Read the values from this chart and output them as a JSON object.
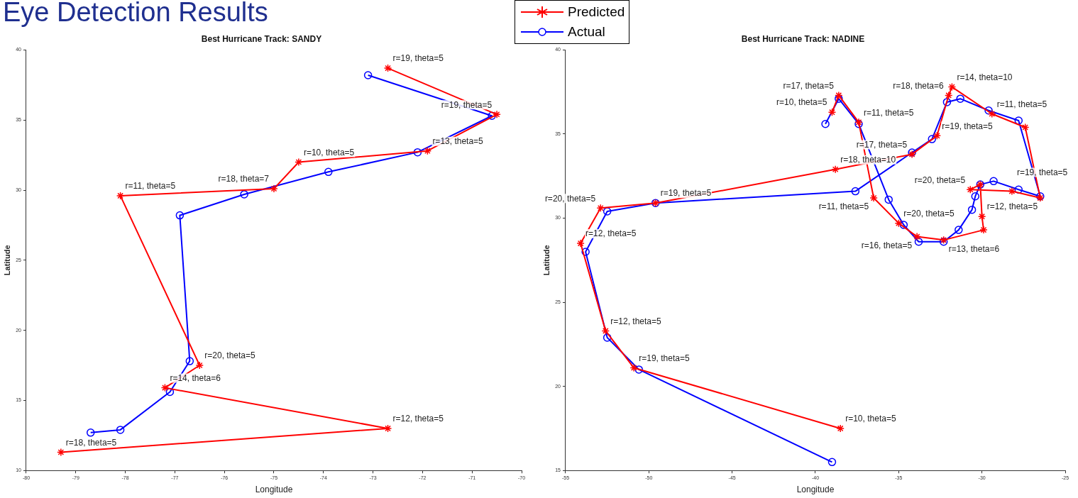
{
  "chart_data": [
    {
      "type": "line",
      "title": "Best Hurricane Track: SANDY",
      "xlabel": "Longitude",
      "ylabel": "Latitude",
      "annotations": [
        "Eye Detection Results"
      ],
      "xlim": [
        -80,
        -70
      ],
      "xticks": [
        -80,
        -79,
        -78,
        -77,
        -76,
        -75,
        -74,
        -73,
        -72,
        -71,
        -70
      ],
      "ylim": [
        10,
        40
      ],
      "yticks": [
        10,
        15,
        20,
        25,
        30,
        35,
        40
      ],
      "grid": false,
      "legend": "top right",
      "series": [
        {
          "name": "Predicted",
          "color": "#ff0000",
          "marker": "cross",
          "x": [
            -79.3,
            -72.7,
            -77.2,
            -76.5,
            -78.1,
            -75.0,
            -74.5,
            -71.9,
            -70.5,
            -72.7
          ],
          "values": [
            11.3,
            13.0,
            15.9,
            17.5,
            29.6,
            30.1,
            32.0,
            32.8,
            35.4,
            38.7
          ],
          "value_labels": [
            "r=18, theta=5",
            "r=12, theta=5",
            "r=14, theta=6",
            "r=20, theta=5",
            "r=11, theta=5",
            "r=18, theta=7",
            "r=10, theta=5",
            "r=13, theta=5",
            "r=19, theta=5",
            "r=19, theta=5"
          ]
        },
        {
          "name": "Actual",
          "color": "#0000ff",
          "marker": "circle",
          "x": [
            -78.7,
            -78.1,
            -77.1,
            -76.7,
            -76.9,
            -75.6,
            -73.9,
            -72.1,
            -70.6,
            -73.1
          ],
          "values": [
            12.7,
            12.9,
            15.6,
            17.8,
            28.2,
            29.7,
            31.3,
            32.7,
            35.3,
            38.2
          ]
        }
      ]
    },
    {
      "type": "line",
      "title": "Best Hurricane Track: NADINE",
      "xlabel": "Longitude",
      "ylabel": "Latitude",
      "xlim": [
        -55,
        -25
      ],
      "xticks": [
        -55,
        -50,
        -45,
        -40,
        -35,
        -30,
        -25
      ],
      "ylim": [
        15,
        40
      ],
      "yticks": [
        15,
        20,
        25,
        30,
        35,
        40
      ],
      "grid": false,
      "series": [
        {
          "color": "#ff0000",
          "marker": "cross",
          "x": [
            -38.5,
            -50.9,
            -52.6,
            -54.1,
            -52.9,
            -49.6,
            -38.8,
            -34.2,
            -32.7,
            -32.0,
            -31.8,
            -29.4,
            -27.4,
            -26.5,
            -28.2,
            -30.7,
            -30.1,
            -30.0,
            -29.9,
            -32.3,
            -33.9,
            -35.0,
            -36.5,
            -37.4,
            -38.6,
            -39.0
          ],
          "values": [
            17.5,
            21.1,
            23.3,
            28.5,
            30.6,
            30.9,
            32.9,
            33.8,
            34.9,
            37.3,
            37.8,
            36.2,
            35.4,
            31.2,
            31.6,
            31.7,
            32.0,
            30.1,
            29.3,
            28.7,
            28.9,
            29.7,
            31.2,
            35.7,
            37.3,
            36.3
          ],
          "value_labels": [
            "r=10, theta=5",
            "r=19, theta=5",
            "r=12, theta=5",
            "r=12, theta=5",
            "r=20, theta=5",
            "r=19, theta=5",
            "r=18, theta=10",
            "r=17, theta=5",
            "r=19, theta=5",
            "r=18, theta=6",
            "r=14, theta=10",
            "r=11, theta=5",
            null,
            null,
            "r=19, theta=5",
            "r=20, theta=5",
            null,
            "r=12, theta=5",
            null,
            "r=13, theta=6",
            "r=16, theta=5",
            "r=20, theta=5",
            "r=11, theta=5",
            "r=11, theta=5",
            "r=17, theta=5",
            "r=10, theta=5"
          ]
        },
        {
          "color": "#0000ff",
          "marker": "circle",
          "x": [
            -39.0,
            -50.6,
            -52.5,
            -53.8,
            -52.5,
            -49.6,
            -37.6,
            -34.2,
            -33.0,
            -32.1,
            -31.3,
            -29.6,
            -27.8,
            -26.5,
            -27.8,
            -29.3,
            -30.1,
            -30.4,
            -30.6,
            -31.4,
            -32.3,
            -33.8,
            -34.7,
            -35.6,
            -37.4,
            -38.6,
            -39.4
          ],
          "values": [
            15.5,
            21.0,
            22.9,
            28.0,
            30.4,
            30.9,
            31.6,
            33.9,
            34.7,
            36.9,
            37.1,
            36.4,
            35.8,
            31.3,
            31.7,
            32.2,
            32.0,
            31.3,
            30.5,
            29.3,
            28.6,
            28.6,
            29.6,
            31.1,
            35.6,
            37.1,
            35.6
          ]
        }
      ]
    }
  ]
}
